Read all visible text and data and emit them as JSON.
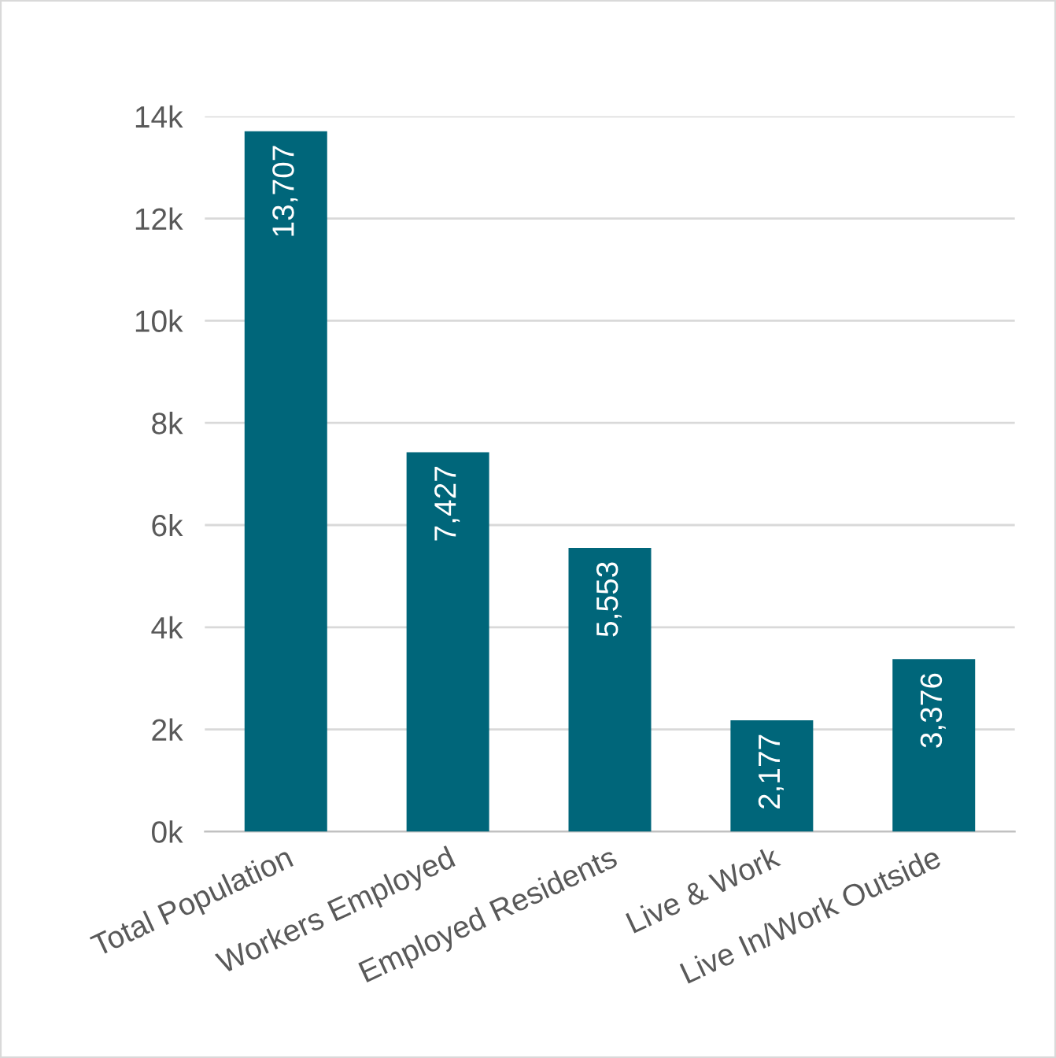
{
  "chart_data": {
    "type": "bar",
    "categories": [
      "Total Population",
      "Workers Employed",
      "Employed Residents",
      "Live & Work",
      "Live In/Work Outside"
    ],
    "values": [
      13707,
      7427,
      5553,
      2177,
      3376
    ],
    "value_labels": [
      "13,707",
      "7,427",
      "5,553",
      "2,177",
      "3,376"
    ],
    "color": "#00667a",
    "ylim": [
      0,
      14000
    ],
    "yticks": [
      {
        "value": 0,
        "label": "0k"
      },
      {
        "value": 2000,
        "label": "2k"
      },
      {
        "value": 4000,
        "label": "4k"
      },
      {
        "value": 6000,
        "label": "6k"
      },
      {
        "value": 8000,
        "label": "8k"
      },
      {
        "value": 10000,
        "label": "10k"
      },
      {
        "value": 12000,
        "label": "12k"
      },
      {
        "value": 14000,
        "label": "14k"
      }
    ],
    "grid": "y"
  }
}
